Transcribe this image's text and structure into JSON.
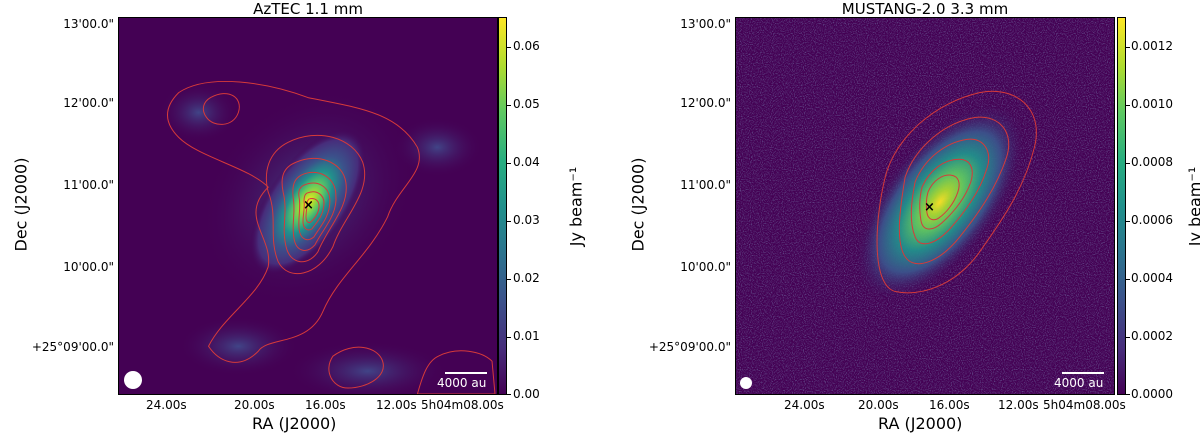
{
  "panels": [
    {
      "title": "AzTEC 1.1 mm",
      "y_ticks": [
        "13'00.0\"",
        "12'00.0\"",
        "11'00.0\"",
        "10'00.0\"",
        "+25°09'00.0\""
      ],
      "x_ticks": [
        "24.00s",
        "20.00s",
        "16.00s",
        "12.00s",
        "5h04m08.00s"
      ],
      "xlabel": "RA (J2000)",
      "ylabel": "Dec (J2000)",
      "colorbar": {
        "label": "Jy beam⁻¹",
        "ticks": [
          "0.06",
          "0.05",
          "0.04",
          "0.03",
          "0.02",
          "0.01",
          "0.00"
        ],
        "range": [
          0.0,
          0.065
        ]
      },
      "scalebar_label": "4000 au",
      "marker": "×"
    },
    {
      "title": "MUSTANG-2.0 3.3 mm",
      "y_ticks": [
        "13'00.0\"",
        "12'00.0\"",
        "11'00.0\"",
        "10'00.0\"",
        "+25°09'00.0\""
      ],
      "x_ticks": [
        "24.00s",
        "20.00s",
        "16.00s",
        "12.00s",
        "5h04m08.00s"
      ],
      "xlabel": "RA (J2000)",
      "ylabel": "Dec (J2000)",
      "colorbar": {
        "label": "Jy beam⁻¹",
        "ticks": [
          "0.0012",
          "0.0010",
          "0.0008",
          "0.0006",
          "0.0004",
          "0.0002",
          "0.0000"
        ],
        "range": [
          0.0,
          0.0012
        ]
      },
      "scalebar_label": "4000 au",
      "marker": "×"
    }
  ],
  "colors": {
    "background": "#440154",
    "contour": "#d63a3a",
    "peak": "#fde725"
  }
}
